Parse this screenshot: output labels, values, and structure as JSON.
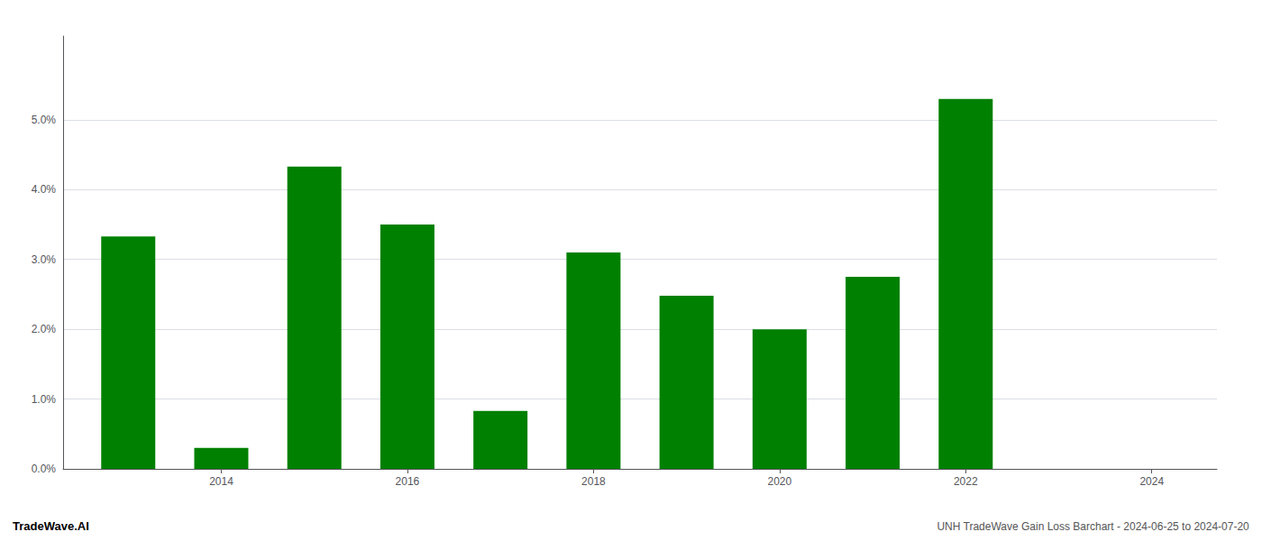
{
  "chart_data": {
    "type": "bar",
    "x": [
      2013,
      2014,
      2015,
      2016,
      2017,
      2018,
      2019,
      2020,
      2021,
      2022
    ],
    "values": [
      0.0333,
      0.003,
      0.0433,
      0.035,
      0.0083,
      0.031,
      0.0248,
      0.02,
      0.0275,
      0.053
    ],
    "color": "#008000",
    "xlim": [
      2012.3,
      2024.7
    ],
    "xticks": [
      2014,
      2016,
      2018,
      2020,
      2022,
      2024
    ],
    "ylim": [
      0,
      0.062
    ],
    "yticks": [
      {
        "value": 0.0,
        "label": "0.0%"
      },
      {
        "value": 0.01,
        "label": "1.0%"
      },
      {
        "value": 0.02,
        "label": "2.0%"
      },
      {
        "value": 0.03,
        "label": "3.0%"
      },
      {
        "value": 0.04,
        "label": "4.0%"
      },
      {
        "value": 0.05,
        "label": "5.0%"
      }
    ],
    "grid": true,
    "annotations": [
      "TradeWave.AI",
      "UNH TradeWave Gain Loss Barchart - 2024-06-25 to 2024-07-20"
    ]
  }
}
